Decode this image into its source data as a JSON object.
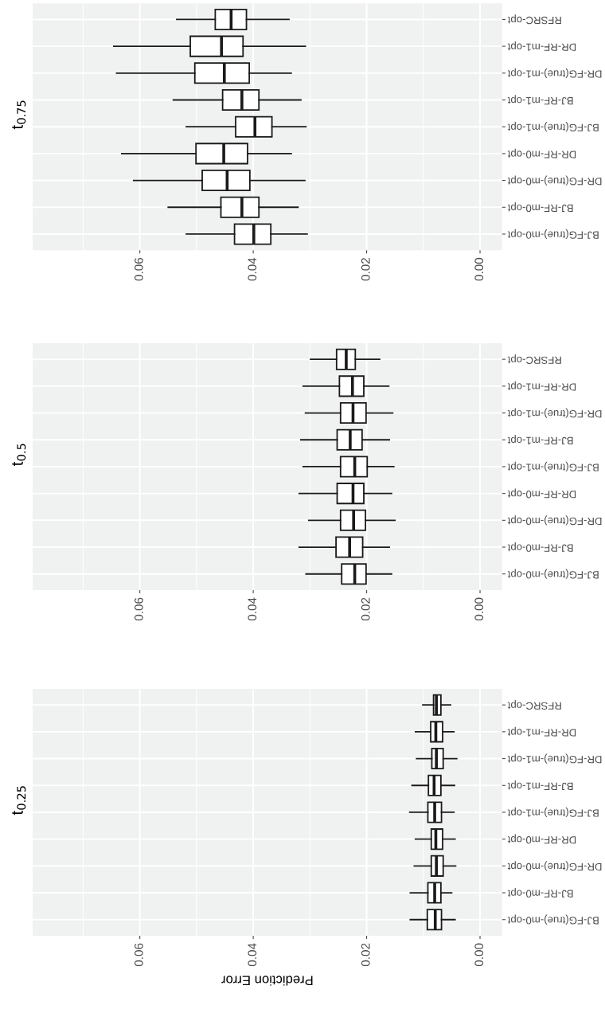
{
  "chart_data": [
    {
      "type": "box",
      "title": "t$_{0.75}$",
      "orientation": "horizontal",
      "grid": true,
      "categories": [
        "RFSRC-opt",
        "DR-RF-m1-opt",
        "DR-FG(true)-m1-opt",
        "BJ-RF-m1-opt",
        "BJ-FG(true)-m1-opt",
        "DR-RF-m0-opt",
        "DR-FG(true)-m0-opt",
        "BJ-RF-m0-opt",
        "BJ-FG(true)-m0-opt"
      ],
      "xlim": [
        0.0789,
        -0.0039
      ],
      "xticks": [
        {
          "value": 0,
          "label": "0.00"
        },
        {
          "value": 0.02,
          "label": "0.02"
        },
        {
          "value": 0.04,
          "label": "0.04"
        },
        {
          "value": 0.06,
          "label": "0.06"
        }
      ],
      "boxes": [
        {
          "low": 0.0337,
          "q1": 0.0412,
          "median": 0.0439,
          "q3": 0.0467,
          "high": 0.0535
        },
        {
          "low": 0.0308,
          "q1": 0.0418,
          "median": 0.0456,
          "q3": 0.0511,
          "high": 0.0646
        },
        {
          "low": 0.0333,
          "q1": 0.0407,
          "median": 0.0451,
          "q3": 0.0503,
          "high": 0.0641
        },
        {
          "low": 0.0316,
          "q1": 0.039,
          "median": 0.042,
          "q3": 0.0454,
          "high": 0.0541
        },
        {
          "low": 0.0307,
          "q1": 0.0367,
          "median": 0.0397,
          "q3": 0.0431,
          "high": 0.0518
        },
        {
          "low": 0.0333,
          "q1": 0.041,
          "median": 0.0452,
          "q3": 0.0501,
          "high": 0.0632
        },
        {
          "low": 0.0309,
          "q1": 0.0406,
          "median": 0.0446,
          "q3": 0.049,
          "high": 0.0611
        },
        {
          "low": 0.0321,
          "q1": 0.039,
          "median": 0.042,
          "q3": 0.0457,
          "high": 0.055
        },
        {
          "low": 0.0305,
          "q1": 0.0369,
          "median": 0.0399,
          "q3": 0.0433,
          "high": 0.0518
        }
      ]
    },
    {
      "type": "box",
      "title": "t$_{0.5}$",
      "orientation": "horizontal",
      "grid": true,
      "categories": [
        "RFSRC-opt",
        "DR-RF-m1-opt",
        "DR-FG(true)-m1-opt",
        "BJ-RF-m1-opt",
        "BJ-FG(true)-m1-opt",
        "DR-RF-m0-opt",
        "DR-FG(true)-m0-opt",
        "BJ-RF-m0-opt",
        "BJ-FG(true)-m0-opt"
      ],
      "xlim": [
        0.0789,
        -0.0039
      ],
      "xticks": [
        {
          "value": 0,
          "label": "0.00"
        },
        {
          "value": 0.02,
          "label": "0.02"
        },
        {
          "value": 0.04,
          "label": "0.04"
        },
        {
          "value": 0.06,
          "label": "0.06"
        }
      ],
      "boxes": [
        {
          "low": 0.0177,
          "q1": 0.022,
          "median": 0.0236,
          "q3": 0.0253,
          "high": 0.0299
        },
        {
          "low": 0.0161,
          "q1": 0.0205,
          "median": 0.0225,
          "q3": 0.0248,
          "high": 0.0312
        },
        {
          "low": 0.0154,
          "q1": 0.0201,
          "median": 0.0224,
          "q3": 0.0246,
          "high": 0.0308
        },
        {
          "low": 0.016,
          "q1": 0.0208,
          "median": 0.0229,
          "q3": 0.0252,
          "high": 0.0316
        },
        {
          "low": 0.0152,
          "q1": 0.0199,
          "median": 0.0221,
          "q3": 0.0246,
          "high": 0.0312
        },
        {
          "low": 0.0156,
          "q1": 0.0205,
          "median": 0.0224,
          "q3": 0.0252,
          "high": 0.0319
        },
        {
          "low": 0.015,
          "q1": 0.0202,
          "median": 0.0223,
          "q3": 0.0246,
          "high": 0.0302
        },
        {
          "low": 0.016,
          "q1": 0.0207,
          "median": 0.023,
          "q3": 0.0254,
          "high": 0.0319
        },
        {
          "low": 0.0156,
          "q1": 0.0201,
          "median": 0.0221,
          "q3": 0.0244,
          "high": 0.0307
        }
      ]
    },
    {
      "type": "box",
      "title": "t$_{0.25}$",
      "xlabel": "Prediction Error",
      "orientation": "horizontal",
      "grid": true,
      "categories": [
        "RFSRC-opt",
        "DR-RF-m1-opt",
        "DR-FG(true)-m1-opt",
        "BJ-RF-m1-opt",
        "BJ-FG(true)-m1-opt",
        "DR-RF-m0-opt",
        "DR-FG(true)-m0-opt",
        "BJ-RF-m0-opt",
        "BJ-FG(true)-m0-opt"
      ],
      "xlim": [
        0.0789,
        -0.0039
      ],
      "xticks": [
        {
          "value": 0,
          "label": "0.00"
        },
        {
          "value": 0.02,
          "label": "0.02"
        },
        {
          "value": 0.04,
          "label": "0.04"
        },
        {
          "value": 0.06,
          "label": "0.06"
        }
      ],
      "boxes": [
        {
          "low": 0.0052,
          "q1": 0.0069,
          "median": 0.0077,
          "q3": 0.0082,
          "high": 0.0101
        },
        {
          "low": 0.0046,
          "q1": 0.0066,
          "median": 0.0078,
          "q3": 0.0087,
          "high": 0.0114
        },
        {
          "low": 0.0041,
          "q1": 0.0065,
          "median": 0.0077,
          "q3": 0.0085,
          "high": 0.0112
        },
        {
          "low": 0.0045,
          "q1": 0.0069,
          "median": 0.0081,
          "q3": 0.0091,
          "high": 0.012
        },
        {
          "low": 0.0046,
          "q1": 0.0068,
          "median": 0.008,
          "q3": 0.0092,
          "high": 0.0124
        },
        {
          "low": 0.0044,
          "q1": 0.0066,
          "median": 0.0078,
          "q3": 0.0086,
          "high": 0.0114
        },
        {
          "low": 0.0043,
          "q1": 0.0065,
          "median": 0.0077,
          "q3": 0.0086,
          "high": 0.0116
        },
        {
          "low": 0.005,
          "q1": 0.0069,
          "median": 0.008,
          "q3": 0.0092,
          "high": 0.0123
        },
        {
          "low": 0.0044,
          "q1": 0.0068,
          "median": 0.0079,
          "q3": 0.0093,
          "high": 0.0123
        }
      ]
    }
  ]
}
